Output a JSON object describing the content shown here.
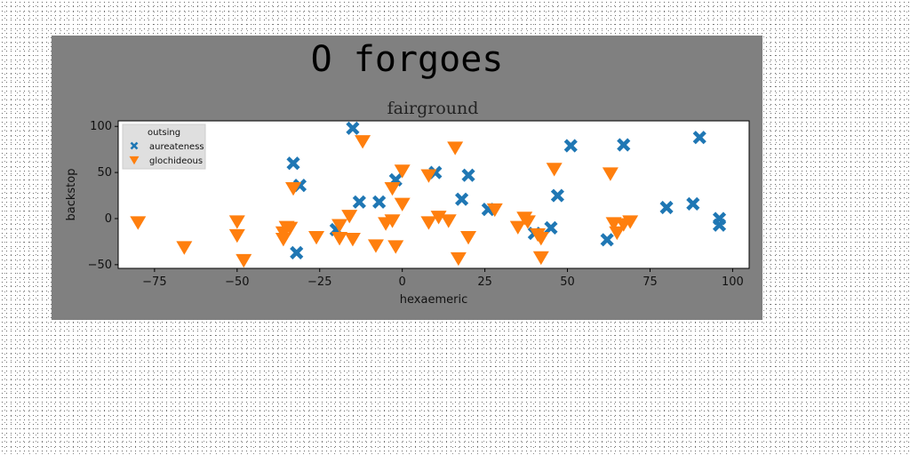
{
  "chart_data": {
    "type": "scatter",
    "suptitle": "O forgoes",
    "title": "fairground",
    "xlabel": "hexaemeric",
    "ylabel": "backstop",
    "xlim": [
      -86,
      105
    ],
    "ylim": [
      -54,
      106
    ],
    "xticks": [
      -75,
      -50,
      -25,
      0,
      25,
      50,
      75,
      100
    ],
    "yticks": [
      -50,
      0,
      50,
      100
    ],
    "grid": false,
    "legend": {
      "title": "outsing",
      "position": "upper-left"
    },
    "colors": {
      "figure_bg": "#808080",
      "axes_bg": "#ffffff"
    },
    "series": [
      {
        "name": "aureateness",
        "marker": "x",
        "color": "#1f77b4",
        "points": [
          [
            -15,
            98
          ],
          [
            -33,
            60
          ],
          [
            -31,
            36
          ],
          [
            -32,
            -37
          ],
          [
            -20,
            -12
          ],
          [
            -13,
            18
          ],
          [
            -7,
            18
          ],
          [
            -2,
            42
          ],
          [
            10,
            50
          ],
          [
            18,
            21
          ],
          [
            20,
            47
          ],
          [
            26,
            10
          ],
          [
            40,
            -16
          ],
          [
            45,
            -10
          ],
          [
            47,
            25
          ],
          [
            51,
            79
          ],
          [
            62,
            -23
          ],
          [
            67,
            80
          ],
          [
            80,
            12
          ],
          [
            88,
            16
          ],
          [
            90,
            88
          ],
          [
            96,
            0
          ],
          [
            96,
            -7
          ]
        ]
      },
      {
        "name": "glochideous",
        "marker": "v",
        "color": "#ff7f0e",
        "points": [
          [
            -80,
            -4
          ],
          [
            -66,
            -31
          ],
          [
            -50,
            -3
          ],
          [
            -50,
            -18
          ],
          [
            -48,
            -45
          ],
          [
            -36,
            -15
          ],
          [
            -36,
            -22
          ],
          [
            -35,
            -9
          ],
          [
            -34,
            -10
          ],
          [
            -33,
            33
          ],
          [
            -26,
            -20
          ],
          [
            -19,
            -7
          ],
          [
            -19,
            -21
          ],
          [
            -16,
            3
          ],
          [
            -15,
            -22
          ],
          [
            -12,
            84
          ],
          [
            -8,
            -29
          ],
          [
            -5,
            -5
          ],
          [
            -3,
            33
          ],
          [
            -3,
            -2
          ],
          [
            -2,
            -30
          ],
          [
            0,
            52
          ],
          [
            0,
            16
          ],
          [
            8,
            -4
          ],
          [
            8,
            47
          ],
          [
            11,
            2
          ],
          [
            14,
            -2
          ],
          [
            16,
            77
          ],
          [
            17,
            -43
          ],
          [
            20,
            -20
          ],
          [
            28,
            10
          ],
          [
            35,
            -9
          ],
          [
            37,
            1
          ],
          [
            38,
            -3
          ],
          [
            41,
            -17
          ],
          [
            42,
            -21
          ],
          [
            42,
            -42
          ],
          [
            46,
            54
          ],
          [
            63,
            49
          ],
          [
            64,
            -5
          ],
          [
            65,
            -15
          ],
          [
            67,
            -6
          ],
          [
            69,
            -3
          ]
        ]
      }
    ]
  }
}
